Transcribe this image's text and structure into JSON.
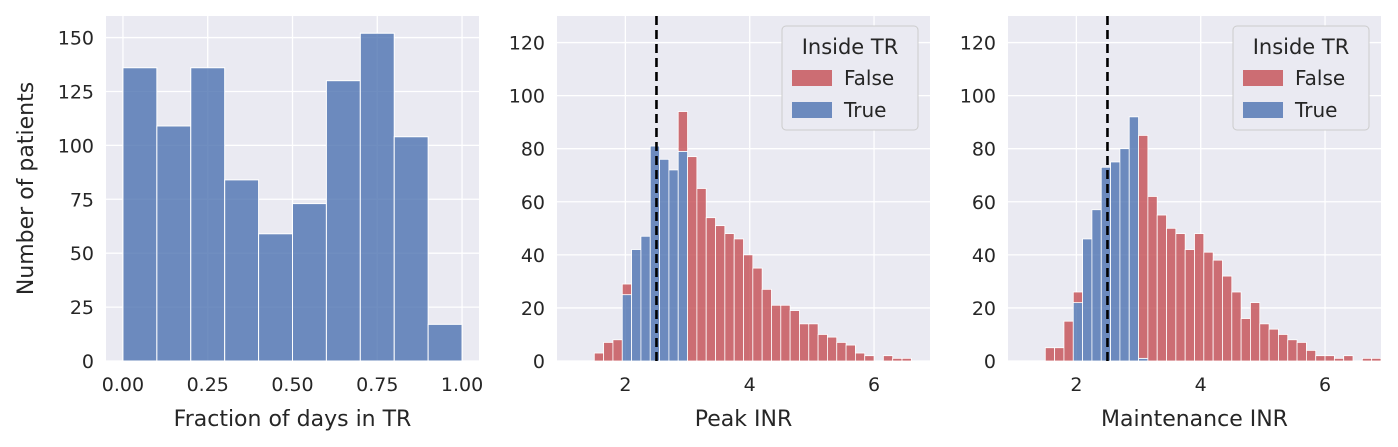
{
  "colors": {
    "background": "#eaeaf2",
    "grid": "#ffffff",
    "true": "#4c72b0",
    "false": "#c44e52",
    "reference_line": "#000000"
  },
  "chart_data": [
    {
      "type": "bar",
      "title": "",
      "xlabel": "Fraction of days in TR",
      "ylabel": "Number of patients",
      "xlim": [
        -0.05,
        1.05
      ],
      "ylim": [
        0,
        160
      ],
      "xticks": [
        "0.00",
        "0.25",
        "0.50",
        "0.75",
        "1.00"
      ],
      "yticks": [
        "0",
        "25",
        "50",
        "75",
        "100",
        "125",
        "150"
      ],
      "bin_edges": [
        0.0,
        0.1,
        0.2,
        0.3,
        0.4,
        0.5,
        0.6,
        0.7,
        0.8,
        0.9,
        1.0
      ],
      "values": [
        136,
        109,
        136,
        84,
        59,
        73,
        130,
        152,
        104,
        17
      ],
      "grid": true
    },
    {
      "type": "bar",
      "title": "",
      "xlabel": "Peak INR",
      "ylabel": "",
      "xlim": [
        0.9,
        6.9
      ],
      "ylim": [
        0,
        130
      ],
      "xticks": [
        "2",
        "4",
        "6"
      ],
      "yticks": [
        "0",
        "20",
        "40",
        "60",
        "80",
        "100",
        "120"
      ],
      "reference_x": 2.5,
      "legend": {
        "title": "Inside TR",
        "entries": [
          "False",
          "True"
        ],
        "placement": "top-right"
      },
      "bin_edges": [
        1.5,
        1.65,
        1.8,
        1.95,
        2.1,
        2.25,
        2.4,
        2.55,
        2.7,
        2.85,
        3.0,
        3.15,
        3.3,
        3.45,
        3.6,
        3.75,
        3.9,
        4.05,
        4.2,
        4.35,
        4.5,
        4.65,
        4.8,
        4.95,
        5.1,
        5.25,
        5.4,
        5.55,
        5.7,
        5.85,
        6.0,
        6.15,
        6.3,
        6.45,
        6.6
      ],
      "series": [
        {
          "name": "True",
          "values": [
            0,
            0,
            0,
            25,
            42,
            47,
            81,
            76,
            72,
            79,
            0,
            0,
            0,
            0,
            0,
            0,
            0,
            0,
            0,
            0,
            0,
            0,
            0,
            0,
            0,
            0,
            0,
            0,
            0,
            0,
            0,
            0,
            0,
            0
          ]
        },
        {
          "name": "False",
          "values": [
            3,
            7,
            8,
            4,
            0,
            0,
            0,
            0,
            0,
            15,
            77,
            65,
            54,
            51,
            48,
            46,
            40,
            35,
            27,
            21,
            21,
            19,
            14,
            14,
            10,
            9,
            7,
            6,
            3,
            2,
            0,
            2,
            1,
            1
          ]
        }
      ],
      "grid": true
    },
    {
      "type": "bar",
      "title": "",
      "xlabel": "Maintenance INR",
      "ylabel": "",
      "xlim": [
        0.9,
        6.9
      ],
      "ylim": [
        0,
        130
      ],
      "xticks": [
        "2",
        "4",
        "6"
      ],
      "yticks": [
        "0",
        "20",
        "40",
        "60",
        "80",
        "100",
        "120"
      ],
      "reference_x": 2.5,
      "legend": {
        "title": "Inside TR",
        "entries": [
          "False",
          "True"
        ],
        "placement": "top-right"
      },
      "bin_edges": [
        1.5,
        1.65,
        1.8,
        1.95,
        2.1,
        2.25,
        2.4,
        2.55,
        2.7,
        2.85,
        3.0,
        3.15,
        3.3,
        3.45,
        3.6,
        3.75,
        3.9,
        4.05,
        4.2,
        4.35,
        4.5,
        4.65,
        4.8,
        4.95,
        5.1,
        5.25,
        5.4,
        5.55,
        5.7,
        5.85,
        6.0,
        6.15,
        6.3,
        6.45,
        6.6,
        6.75,
        6.9
      ],
      "series": [
        {
          "name": "True",
          "values": [
            0,
            0,
            0,
            22,
            46,
            57,
            73,
            75,
            80,
            92,
            1,
            0,
            0,
            0,
            0,
            0,
            0,
            0,
            0,
            0,
            0,
            0,
            0,
            0,
            0,
            0,
            0,
            0,
            0,
            0,
            0,
            0,
            0,
            0,
            0,
            0
          ]
        },
        {
          "name": "False",
          "values": [
            5,
            5,
            15,
            4,
            0,
            0,
            0,
            0,
            0,
            0,
            84,
            62,
            55,
            50,
            48,
            42,
            48,
            41,
            38,
            32,
            26,
            16,
            22,
            14,
            12,
            10,
            8,
            7,
            4,
            2,
            2,
            1,
            2,
            0,
            1,
            1
          ]
        }
      ],
      "grid": true
    }
  ]
}
